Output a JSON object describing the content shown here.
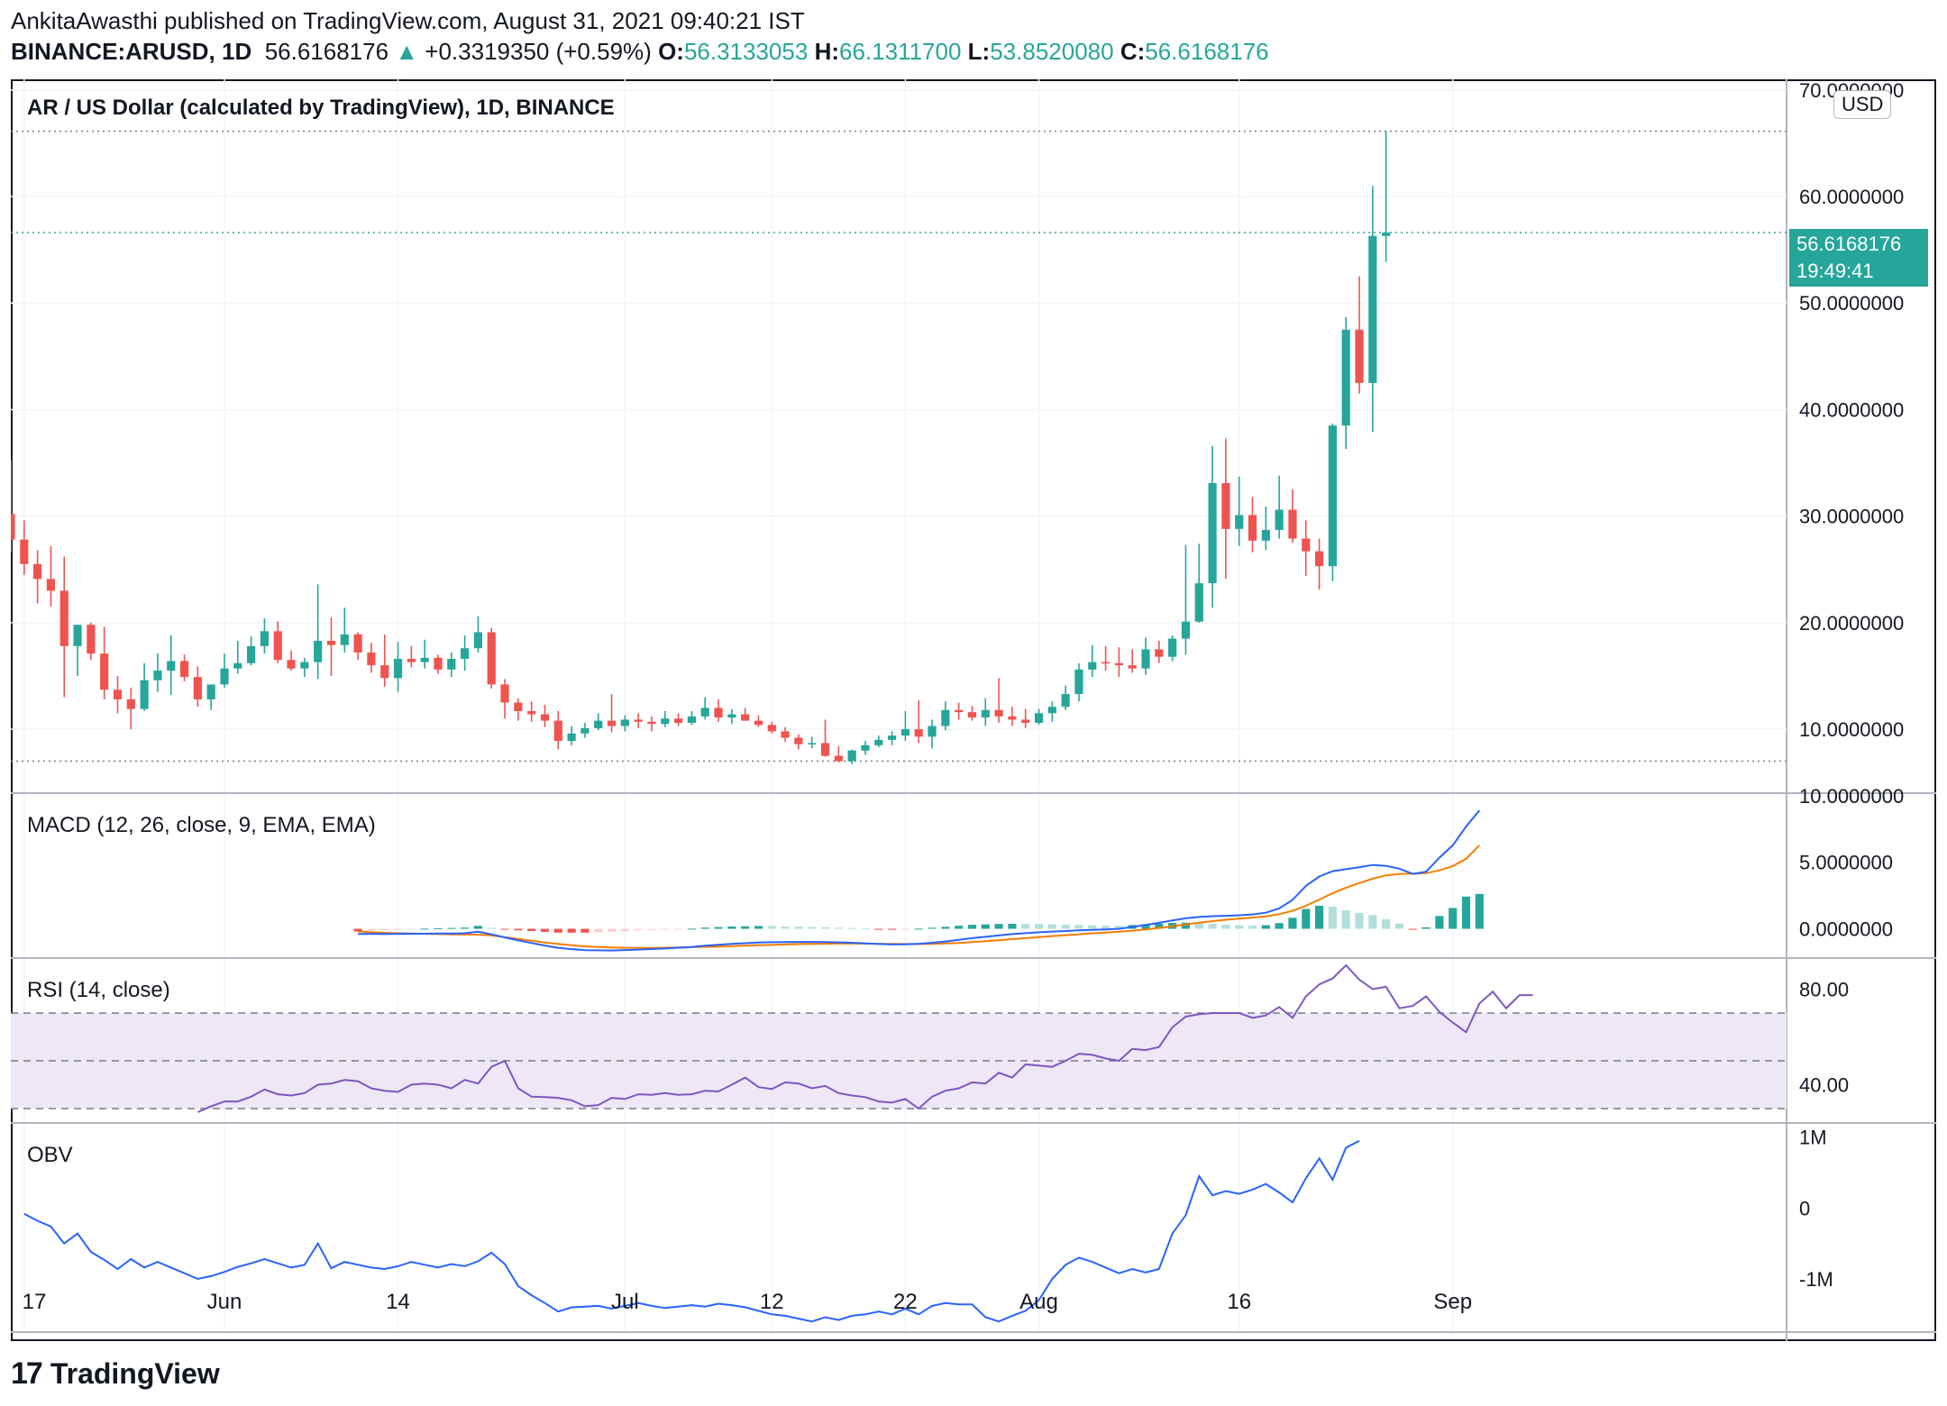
{
  "header": {
    "line1": "AnkitaAwasthi published on TradingView.com, August 31, 2021 09:40:21 IST",
    "symbol": "BINANCE:ARUSD, 1D",
    "last": "56.6168176",
    "change_arrow": "▲",
    "change": "+0.3319350 (+0.59%)",
    "o_label": "O:",
    "o": "56.3133053",
    "h_label": "H:",
    "h": "66.1311700",
    "l_label": "L:",
    "l": "53.8520080",
    "c_label": "C:",
    "c": "56.6168176"
  },
  "panes": {
    "main_title": "AR / US Dollar (calculated by TradingView), 1D, BINANCE",
    "macd_title": "MACD (12, 26, close, 9, EMA, EMA)",
    "rsi_title": "RSI (14, close)",
    "obv_title": "OBV"
  },
  "badges": {
    "currency": "USD",
    "last_price": "56.6168176",
    "countdown": "19:49:41"
  },
  "footer": {
    "logo_mark": "17",
    "logo_text": "TradingView"
  },
  "colors": {
    "up": "#26a69a",
    "down": "#ef5350",
    "macd": "#2962ff",
    "signal": "#f57c00",
    "rsi": "#7e57c2",
    "obv": "#2962ff",
    "rsi_band": "#ede7f6",
    "hist_up_strong": "#26a69a",
    "hist_up_weak": "#b2dfdb",
    "hist_down_strong": "#ef5350",
    "hist_down_weak": "#ffcdd2"
  },
  "chart_data": [
    {
      "type": "candlestick",
      "title": "AR / US Dollar (calculated by TradingView), 1D, BINANCE",
      "y_ticks": [
        "70.0000000",
        "60.0000000",
        "50.0000000",
        "40.0000000",
        "30.0000000",
        "20.0000000",
        "10.0000000"
      ],
      "y_tick_values": [
        70,
        60,
        50,
        40,
        30,
        20,
        10
      ],
      "ylim": [
        4,
        71
      ],
      "x_tick_labels": [
        "17",
        "Jun",
        "14",
        "Jul",
        "12",
        "22",
        "Aug",
        "16",
        "Sep"
      ],
      "x_tick_dates": [
        "2021-05-17",
        "2021-06-01",
        "2021-06-14",
        "2021-07-01",
        "2021-07-12",
        "2021-07-22",
        "2021-08-01",
        "2021-08-16",
        "2021-09-01"
      ],
      "x_range": [
        "2021-05-16",
        "2021-09-26"
      ],
      "first_date": "2021-05-16",
      "dotted_levels": [
        66.13,
        56.62,
        7.0
      ],
      "ohlc": [
        [
          30.2,
          35.3,
          26.6,
          27.8
        ],
        [
          27.8,
          29.6,
          24.5,
          25.5
        ],
        [
          25.5,
          26.8,
          21.8,
          24.1
        ],
        [
          24.1,
          27.2,
          21.5,
          23.0
        ],
        [
          23.0,
          26.2,
          13.0,
          17.8
        ],
        [
          17.8,
          19.8,
          15.0,
          19.8
        ],
        [
          19.8,
          20.0,
          16.5,
          17.1
        ],
        [
          17.1,
          19.6,
          12.8,
          13.7
        ],
        [
          13.7,
          15.0,
          11.5,
          12.8
        ],
        [
          12.8,
          13.9,
          10.0,
          11.9
        ],
        [
          11.9,
          16.2,
          11.7,
          14.6
        ],
        [
          14.6,
          17.1,
          13.5,
          15.5
        ],
        [
          15.5,
          18.8,
          13.2,
          16.4
        ],
        [
          16.4,
          17.0,
          14.5,
          14.9
        ],
        [
          14.9,
          15.9,
          12.1,
          12.8
        ],
        [
          12.8,
          14.2,
          11.8,
          14.2
        ],
        [
          14.2,
          17.1,
          13.9,
          15.7
        ],
        [
          15.7,
          18.3,
          15.2,
          16.2
        ],
        [
          16.2,
          18.7,
          16.0,
          17.8
        ],
        [
          17.8,
          20.4,
          17.1,
          19.2
        ],
        [
          19.2,
          20.1,
          16.2,
          16.5
        ],
        [
          16.5,
          17.4,
          15.5,
          15.7
        ],
        [
          15.7,
          16.7,
          14.9,
          16.3
        ],
        [
          16.3,
          23.6,
          14.7,
          18.3
        ],
        [
          18.3,
          20.5,
          15.0,
          17.9
        ],
        [
          17.9,
          21.4,
          17.2,
          18.9
        ],
        [
          18.9,
          19.1,
          16.5,
          17.2
        ],
        [
          17.2,
          18.1,
          15.3,
          16.0
        ],
        [
          16.0,
          18.9,
          14.0,
          14.8
        ],
        [
          14.8,
          18.2,
          13.5,
          16.6
        ],
        [
          16.6,
          17.8,
          15.8,
          16.3
        ],
        [
          16.3,
          18.4,
          15.7,
          16.7
        ],
        [
          16.7,
          17.0,
          15.2,
          15.6
        ],
        [
          15.6,
          17.2,
          14.9,
          16.6
        ],
        [
          16.6,
          18.8,
          15.5,
          17.6
        ],
        [
          17.6,
          20.6,
          17.2,
          19.1
        ],
        [
          19.1,
          19.5,
          13.8,
          14.2
        ],
        [
          14.2,
          14.7,
          11.0,
          12.5
        ],
        [
          12.5,
          12.9,
          10.8,
          11.7
        ],
        [
          11.7,
          12.6,
          10.7,
          11.4
        ],
        [
          11.4,
          12.3,
          10.2,
          10.8
        ],
        [
          10.8,
          11.7,
          8.1,
          8.9
        ],
        [
          8.9,
          10.3,
          8.5,
          9.6
        ],
        [
          9.6,
          10.6,
          9.2,
          10.1
        ],
        [
          10.1,
          11.5,
          9.9,
          10.8
        ],
        [
          10.8,
          13.3,
          9.7,
          10.3
        ],
        [
          10.3,
          11.3,
          9.8,
          10.9
        ],
        [
          10.9,
          11.5,
          10.1,
          10.7
        ],
        [
          10.7,
          11.2,
          9.8,
          10.5
        ],
        [
          10.5,
          11.7,
          10.2,
          11.0
        ],
        [
          11.0,
          11.5,
          10.3,
          10.6
        ],
        [
          10.6,
          11.7,
          10.4,
          11.2
        ],
        [
          11.2,
          13.0,
          10.9,
          12.0
        ],
        [
          12.0,
          12.8,
          10.7,
          11.1
        ],
        [
          11.1,
          11.9,
          10.5,
          11.4
        ],
        [
          11.4,
          12.0,
          10.8,
          10.8
        ],
        [
          10.8,
          11.3,
          10.2,
          10.4
        ],
        [
          10.4,
          10.7,
          9.6,
          9.8
        ],
        [
          9.8,
          10.2,
          8.8,
          9.2
        ],
        [
          9.2,
          9.5,
          8.1,
          8.6
        ],
        [
          8.6,
          9.3,
          8.2,
          8.7
        ],
        [
          8.7,
          10.9,
          7.4,
          7.5
        ],
        [
          7.5,
          8.4,
          6.9,
          7.0
        ],
        [
          7.0,
          8.1,
          6.7,
          8.0
        ],
        [
          8.0,
          8.9,
          7.6,
          8.5
        ],
        [
          8.5,
          9.4,
          8.3,
          9.0
        ],
        [
          9.0,
          9.8,
          8.5,
          9.4
        ],
        [
          9.4,
          11.7,
          8.9,
          10.0
        ],
        [
          10.0,
          12.7,
          8.7,
          9.3
        ],
        [
          9.3,
          10.9,
          8.2,
          10.3
        ],
        [
          10.3,
          12.6,
          9.9,
          11.8
        ],
        [
          11.8,
          12.5,
          10.9,
          11.6
        ],
        [
          11.6,
          12.2,
          10.8,
          11.1
        ],
        [
          11.1,
          12.9,
          10.3,
          11.8
        ],
        [
          11.8,
          14.8,
          10.6,
          11.2
        ],
        [
          11.2,
          12.1,
          10.3,
          10.9
        ],
        [
          10.9,
          11.9,
          10.1,
          10.6
        ],
        [
          10.6,
          11.9,
          10.4,
          11.5
        ],
        [
          11.5,
          12.6,
          10.7,
          12.1
        ],
        [
          12.1,
          14.1,
          11.8,
          13.3
        ],
        [
          13.3,
          16.2,
          12.6,
          15.6
        ],
        [
          15.6,
          17.9,
          14.9,
          16.3
        ],
        [
          16.3,
          17.8,
          15.5,
          16.2
        ],
        [
          16.2,
          17.7,
          14.9,
          16.0
        ],
        [
          16.0,
          17.5,
          15.3,
          15.7
        ],
        [
          15.7,
          18.6,
          15.1,
          17.5
        ],
        [
          17.5,
          18.3,
          16.2,
          16.8
        ],
        [
          16.8,
          18.8,
          16.4,
          18.5
        ],
        [
          18.5,
          27.3,
          17.0,
          20.1
        ],
        [
          20.1,
          27.4,
          20.0,
          23.7
        ],
        [
          23.7,
          36.6,
          21.4,
          33.1
        ],
        [
          33.1,
          37.3,
          24.1,
          28.8
        ],
        [
          28.8,
          33.7,
          27.2,
          30.1
        ],
        [
          30.1,
          31.8,
          26.6,
          27.7
        ],
        [
          27.7,
          30.9,
          26.8,
          28.7
        ],
        [
          28.7,
          33.8,
          27.9,
          30.6
        ],
        [
          30.6,
          32.5,
          27.5,
          27.9
        ],
        [
          27.9,
          29.6,
          24.4,
          26.7
        ],
        [
          26.7,
          27.9,
          23.1,
          25.3
        ],
        [
          25.3,
          38.7,
          23.9,
          38.5
        ],
        [
          38.5,
          48.7,
          36.3,
          47.5
        ],
        [
          47.5,
          52.5,
          41.5,
          42.5
        ],
        [
          42.5,
          61.0,
          37.9,
          56.3
        ],
        [
          56.3,
          66.13,
          53.85,
          56.62
        ]
      ]
    },
    {
      "type": "line+bar",
      "title": "MACD (12, 26, close, 9, EMA, EMA)",
      "y_ticks": [
        "10.0000000",
        "5.0000000",
        "0.0000000"
      ],
      "y_tick_values": [
        10,
        5,
        0
      ],
      "ylim": [
        -2.2,
        10.2
      ],
      "first_date": "2021-05-16",
      "start_index": 26,
      "macd": [
        -0.4,
        -0.38,
        -0.4,
        -0.38,
        -0.38,
        -0.37,
        -0.36,
        -0.36,
        -0.34,
        -0.22,
        -0.42,
        -0.65,
        -0.87,
        -1.07,
        -1.26,
        -1.43,
        -1.53,
        -1.61,
        -1.62,
        -1.63,
        -1.6,
        -1.56,
        -1.52,
        -1.48,
        -1.42,
        -1.37,
        -1.27,
        -1.2,
        -1.13,
        -1.08,
        -1.03,
        -1.01,
        -1.0,
        -0.99,
        -0.99,
        -1.0,
        -1.02,
        -1.05,
        -1.1,
        -1.14,
        -1.18,
        -1.16,
        -1.13,
        -1.05,
        -0.95,
        -0.83,
        -0.7,
        -0.6,
        -0.5,
        -0.4,
        -0.33,
        -0.26,
        -0.21,
        -0.17,
        -0.12,
        -0.08,
        -0.05,
        0.0,
        0.14,
        0.29,
        0.45,
        0.63,
        0.79,
        0.89,
        0.95,
        0.98,
        1.02,
        1.08,
        1.21,
        1.53,
        2.18,
        3.23,
        3.93,
        4.33,
        4.48,
        4.63,
        4.8,
        4.73,
        4.52,
        4.13,
        4.29,
        5.35,
        6.28,
        7.69,
        8.9
      ],
      "signal": [
        -0.2,
        -0.25,
        -0.3,
        -0.34,
        -0.36,
        -0.38,
        -0.4,
        -0.42,
        -0.43,
        -0.44,
        -0.5,
        -0.62,
        -0.76,
        -0.9,
        -1.03,
        -1.14,
        -1.24,
        -1.32,
        -1.37,
        -1.41,
        -1.43,
        -1.44,
        -1.44,
        -1.42,
        -1.4,
        -1.38,
        -1.36,
        -1.33,
        -1.3,
        -1.27,
        -1.24,
        -1.21,
        -1.18,
        -1.15,
        -1.13,
        -1.12,
        -1.11,
        -1.11,
        -1.11,
        -1.12,
        -1.13,
        -1.14,
        -1.14,
        -1.13,
        -1.1,
        -1.06,
        -1.0,
        -0.93,
        -0.86,
        -0.78,
        -0.7,
        -0.62,
        -0.55,
        -0.48,
        -0.41,
        -0.34,
        -0.28,
        -0.22,
        -0.14,
        -0.05,
        0.06,
        0.19,
        0.33,
        0.46,
        0.58,
        0.68,
        0.76,
        0.84,
        0.94,
        1.1,
        1.35,
        1.74,
        2.2,
        2.67,
        3.09,
        3.44,
        3.77,
        4.02,
        4.13,
        4.14,
        4.18,
        4.39,
        4.72,
        5.27,
        6.28
      ],
      "histogram_color_rule": "green when >0 (solid if rising, pale if falling), red when <0"
    },
    {
      "type": "line",
      "title": "RSI (14, close)",
      "y_ticks": [
        "80.00",
        "40.00"
      ],
      "y_tick_values": [
        80,
        40
      ],
      "band": [
        30,
        70
      ],
      "midline": 50,
      "ylim": [
        27,
        90
      ],
      "first_date": "2021-05-16",
      "start_index": 14,
      "rsi": [
        28.5,
        31.0,
        33.0,
        33.0,
        35.0,
        38.0,
        36.0,
        35.5,
        36.5,
        40.0,
        40.5,
        42.0,
        41.5,
        38.5,
        37.5,
        37.0,
        40.0,
        40.5,
        40.0,
        38.5,
        42.0,
        40.5,
        47.5,
        50.0,
        38.5,
        35.0,
        34.8,
        34.5,
        33.5,
        31.0,
        31.5,
        34.5,
        34.0,
        36.0,
        35.8,
        36.5,
        35.8,
        36.0,
        37.5,
        37.2,
        40.0,
        43.0,
        39.0,
        38.2,
        41.0,
        40.5,
        38.5,
        39.5,
        36.5,
        35.5,
        34.8,
        33.0,
        32.5,
        34.0,
        30.0,
        35.0,
        37.5,
        38.5,
        41.0,
        40.5,
        45.0,
        43.0,
        48.5,
        48.0,
        47.5,
        50.0,
        53.0,
        52.5,
        51.0,
        50.0,
        55.0,
        54.5,
        55.8,
        64.0,
        68.5,
        69.5,
        70.0,
        70.0,
        70.0,
        68.0,
        69.0,
        72.5,
        68.0,
        77.0,
        82.0,
        84.5,
        90.0,
        84.0,
        80.0,
        81.0,
        72.0,
        73.0,
        77.0,
        70.5,
        66.0,
        62.0,
        74.0,
        79.0,
        72.0,
        77.5,
        77.5
      ]
    },
    {
      "type": "line",
      "title": "OBV",
      "y_ticks": [
        "1M",
        "0",
        "-1M"
      ],
      "y_tick_values": [
        1000000,
        0,
        -1000000
      ],
      "ylim": [
        -1750000,
        1200000
      ],
      "first_date": "2021-05-16",
      "start_index": 1,
      "obv": [
        -80000,
        -180000,
        -260000,
        -500000,
        -360000,
        -620000,
        -730000,
        -860000,
        -720000,
        -840000,
        -760000,
        -840000,
        -920000,
        -1000000,
        -960000,
        -900000,
        -830000,
        -780000,
        -720000,
        -780000,
        -840000,
        -800000,
        -500000,
        -850000,
        -760000,
        -800000,
        -840000,
        -860000,
        -820000,
        -760000,
        -800000,
        -840000,
        -790000,
        -820000,
        -750000,
        -630000,
        -790000,
        -1100000,
        -1230000,
        -1340000,
        -1460000,
        -1400000,
        -1390000,
        -1380000,
        -1420000,
        -1380000,
        -1340000,
        -1380000,
        -1410000,
        -1390000,
        -1370000,
        -1390000,
        -1350000,
        -1370000,
        -1400000,
        -1450000,
        -1500000,
        -1520000,
        -1560000,
        -1600000,
        -1540000,
        -1580000,
        -1520000,
        -1500000,
        -1460000,
        -1500000,
        -1420000,
        -1500000,
        -1380000,
        -1340000,
        -1360000,
        -1360000,
        -1540000,
        -1600000,
        -1520000,
        -1450000,
        -1300000,
        -1000000,
        -800000,
        -700000,
        -760000,
        -840000,
        -920000,
        -860000,
        -910000,
        -860000,
        -360000,
        -100000,
        450000,
        180000,
        240000,
        200000,
        260000,
        340000,
        220000,
        80000,
        420000,
        700000,
        400000,
        850000,
        950000
      ]
    }
  ]
}
